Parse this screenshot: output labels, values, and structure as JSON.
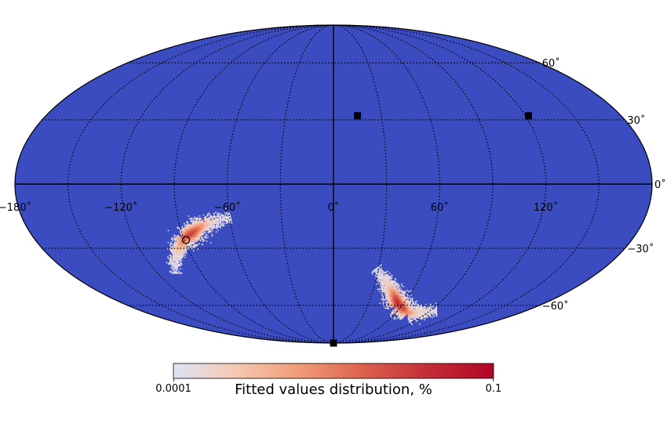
{
  "chart_data": {
    "type": "heatmap",
    "projection": "mollweide",
    "background_color": "#3b4cc0",
    "grid": true,
    "lon_ticks": [
      {
        "value": -180,
        "label": "−180˚"
      },
      {
        "value": -120,
        "label": "−120˚"
      },
      {
        "value": -60,
        "label": "−60˚"
      },
      {
        "value": 0,
        "label": "0˚"
      },
      {
        "value": 60,
        "label": "60˚"
      },
      {
        "value": 120,
        "label": "120˚"
      }
    ],
    "lat_ticks": [
      {
        "value": 60,
        "label": "60˚"
      },
      {
        "value": 30,
        "label": "30˚"
      },
      {
        "value": 0,
        "label": "0˚"
      },
      {
        "value": -30,
        "label": "−30˚"
      },
      {
        "value": -60,
        "label": "−60˚"
      }
    ],
    "gridline_lons": [
      -150,
      -120,
      -90,
      -60,
      -30,
      30,
      60,
      90,
      120,
      150
    ],
    "gridline_lats": [
      -60,
      -30,
      30,
      60
    ],
    "markers_square": [
      {
        "lon": 15,
        "lat": 32
      },
      {
        "lon": 122,
        "lat": 32
      },
      {
        "lon": 0,
        "lat": -90
      }
    ],
    "marker_circle": {
      "lon": -89,
      "lat": -26
    },
    "distribution_arcs": [
      {
        "center": [
          -90,
          -24
        ],
        "arc": [
          [
            -60,
            -15
          ],
          [
            -75,
            -18
          ],
          [
            -90,
            -25
          ],
          [
            -100,
            -33
          ],
          [
            -108,
            -42
          ]
        ],
        "peak": 0.07
      },
      {
        "center": [
          45,
          -52
        ],
        "arc": [
          [
            28,
            -40
          ],
          [
            38,
            -47
          ],
          [
            46,
            -53
          ],
          [
            55,
            -59
          ],
          [
            70,
            -64
          ],
          [
            95,
            -63
          ]
        ],
        "peak": 0.08
      }
    ],
    "colorbar": {
      "label": "Fitted values distribution, %",
      "min_label": "0.0001",
      "max_label": "0.1",
      "colors": [
        "#dde4f5",
        "#f6c7b0",
        "#f09a77",
        "#dc5f4b",
        "#c22c36",
        "#b40426"
      ]
    }
  }
}
